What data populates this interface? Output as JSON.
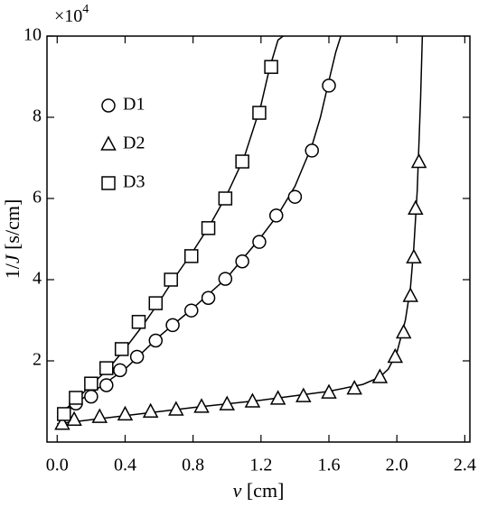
{
  "chart_data": {
    "type": "scatter",
    "xlabel": {
      "italic": "v",
      "post": " [cm]"
    },
    "ylabel": {
      "pre": "1/",
      "italic": "J",
      "post": " [s/cm]"
    },
    "y_multiplier": {
      "base": "×10",
      "exponent": "4"
    },
    "xlim": [
      -0.06,
      2.43
    ],
    "ylim": [
      0,
      10
    ],
    "xticks": [
      {
        "value": 0,
        "label": "0.0"
      },
      0.4,
      0.8,
      1.2,
      1.6,
      {
        "value": 2,
        "label": "2.0"
      },
      2.4
    ],
    "yticks": [
      2,
      4,
      6,
      8,
      10
    ],
    "legend": "upper left",
    "series": [
      {
        "name": "D1",
        "marker": "circle",
        "color": "#000",
        "x": [
          0.11,
          0.2,
          0.29,
          0.37,
          0.47,
          0.58,
          0.68,
          0.79,
          0.89,
          0.99,
          1.09,
          1.19,
          1.29,
          1.4,
          1.5,
          1.6
        ],
        "values": [
          0.95,
          1.12,
          1.4,
          1.77,
          2.1,
          2.5,
          2.88,
          3.24,
          3.55,
          4.02,
          4.45,
          4.93,
          5.58,
          6.04,
          7.18,
          8.78
        ]
      },
      {
        "name": "D2",
        "marker": "triangle",
        "color": "#000",
        "x": [
          0.03,
          0.1,
          0.25,
          0.4,
          0.55,
          0.7,
          0.85,
          1.0,
          1.15,
          1.3,
          1.45,
          1.6,
          1.75,
          1.9,
          1.99,
          2.04,
          2.08,
          2.1,
          2.11,
          2.13
        ],
        "values": [
          0.45,
          0.55,
          0.62,
          0.68,
          0.75,
          0.8,
          0.87,
          0.93,
          1.0,
          1.07,
          1.13,
          1.22,
          1.32,
          1.6,
          2.1,
          2.7,
          3.6,
          4.55,
          5.75,
          6.9
        ]
      },
      {
        "name": "D3",
        "marker": "square",
        "color": "#000",
        "x": [
          0.04,
          0.11,
          0.2,
          0.29,
          0.38,
          0.48,
          0.58,
          0.67,
          0.79,
          0.89,
          0.99,
          1.09,
          1.19,
          1.26
        ],
        "values": [
          0.69,
          1.09,
          1.44,
          1.82,
          2.29,
          2.96,
          3.42,
          4.0,
          4.58,
          5.27,
          6.0,
          6.91,
          8.11,
          9.24
        ]
      }
    ],
    "curves": [
      {
        "x": [
          0,
          0.2,
          0.4,
          0.6,
          0.8,
          1.0,
          1.2,
          1.3,
          1.4,
          1.5,
          1.55,
          1.6,
          1.64,
          1.67
        ],
        "values": [
          0.7,
          1.2,
          1.8,
          2.6,
          3.3,
          4.05,
          5.05,
          5.6,
          6.3,
          7.3,
          8.0,
          8.9,
          9.6,
          10
        ]
      },
      {
        "x": [
          0,
          0.4,
          0.8,
          1.2,
          1.6,
          1.8,
          1.9,
          1.95,
          2.0,
          2.05,
          2.08,
          2.1,
          2.12,
          2.14,
          2.15
        ],
        "values": [
          0.45,
          0.65,
          0.85,
          1.03,
          1.25,
          1.42,
          1.6,
          1.8,
          2.2,
          3.0,
          3.8,
          4.8,
          6.2,
          8.5,
          10
        ]
      },
      {
        "x": [
          0,
          0.1,
          0.2,
          0.3,
          0.4,
          0.5,
          0.6,
          0.7,
          0.8,
          0.9,
          1.0,
          1.1,
          1.2,
          1.25,
          1.3,
          1.33
        ],
        "values": [
          0.62,
          1.0,
          1.4,
          1.8,
          2.3,
          2.85,
          3.45,
          4.1,
          4.7,
          5.35,
          6.1,
          7.0,
          8.3,
          9.2,
          9.9,
          10
        ]
      }
    ]
  }
}
